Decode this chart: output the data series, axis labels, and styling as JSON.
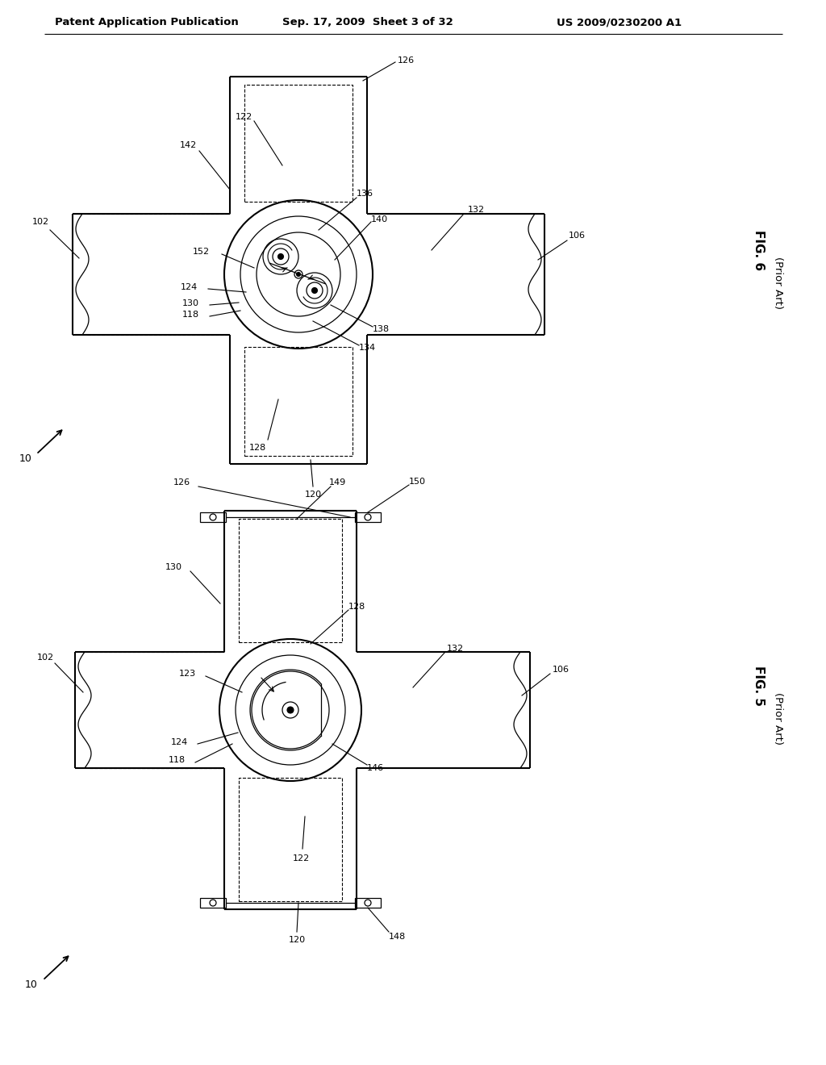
{
  "bg_color": "#ffffff",
  "header_text": "Patent Application Publication",
  "header_date": "Sep. 17, 2009  Sheet 3 of 32",
  "header_patent": "US 2009/0230200 A1",
  "line_color": "#000000",
  "line_width": 1.5,
  "thin_line": 0.9,
  "fig6_title": "FIG. 6",
  "fig6_sub": "(Prior Art)",
  "fig5_title": "FIG. 5",
  "fig5_sub": "(Prior Art)"
}
